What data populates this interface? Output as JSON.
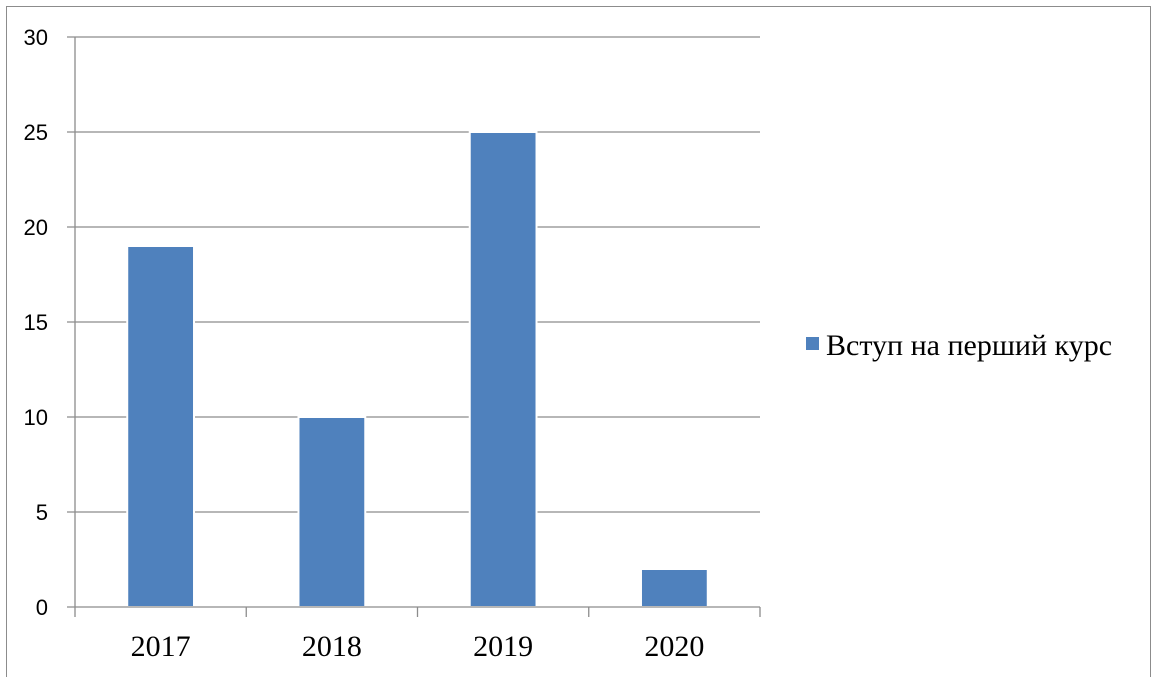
{
  "chart_data": {
    "type": "bar",
    "categories": [
      "2017",
      "2018",
      "2019",
      "2020"
    ],
    "series": [
      {
        "name": "Вступ на перший курс",
        "values": [
          19,
          10,
          25,
          2
        ],
        "color": "#4f81bd"
      }
    ],
    "ylim": [
      0,
      30
    ],
    "yticks": [
      0,
      5,
      10,
      15,
      20,
      25,
      30
    ],
    "grid": true,
    "legend_position": "right"
  }
}
